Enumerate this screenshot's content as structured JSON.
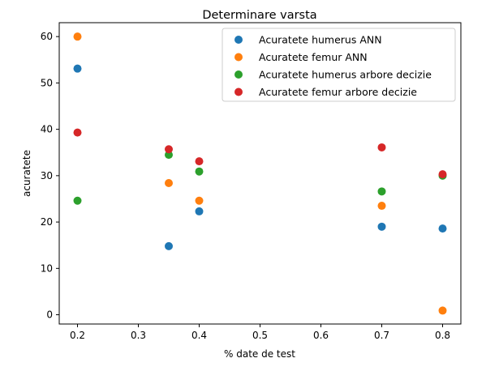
{
  "chart_data": {
    "type": "scatter",
    "title": "Determinare varsta",
    "xlabel": "% date de test",
    "ylabel": "acuratete",
    "xlim": [
      0.17,
      0.83
    ],
    "ylim": [
      -2,
      63
    ],
    "xticks": [
      0.2,
      0.3,
      0.4,
      0.5,
      0.6,
      0.7,
      0.8
    ],
    "xtick_labels": [
      "0.2",
      "0.3",
      "0.4",
      "0.5",
      "0.6",
      "0.7",
      "0.8"
    ],
    "yticks": [
      0,
      10,
      20,
      30,
      40,
      50,
      60
    ],
    "ytick_labels": [
      "0",
      "10",
      "20",
      "30",
      "40",
      "50",
      "60"
    ],
    "grid": false,
    "legend_position": "top-right",
    "series": [
      {
        "name": "Acuratete humerus ANN",
        "color": "#1f77b4",
        "points": [
          [
            0.2,
            53.1
          ],
          [
            0.35,
            14.8
          ],
          [
            0.4,
            22.3
          ],
          [
            0.7,
            19.0
          ],
          [
            0.8,
            18.6
          ]
        ]
      },
      {
        "name": "Acuratete femur ANN",
        "color": "#ff7f0e",
        "points": [
          [
            0.2,
            60.0
          ],
          [
            0.35,
            28.4
          ],
          [
            0.4,
            24.6
          ],
          [
            0.7,
            23.5
          ],
          [
            0.8,
            0.9
          ]
        ]
      },
      {
        "name": "Acuratete humerus arbore decizie",
        "color": "#2ca02c",
        "points": [
          [
            0.2,
            24.6
          ],
          [
            0.35,
            34.5
          ],
          [
            0.4,
            30.9
          ],
          [
            0.7,
            26.6
          ],
          [
            0.8,
            30.0
          ]
        ]
      },
      {
        "name": "Acuratete femur arbore decizie",
        "color": "#d62728",
        "points": [
          [
            0.2,
            39.3
          ],
          [
            0.35,
            35.7
          ],
          [
            0.4,
            33.1
          ],
          [
            0.7,
            36.1
          ],
          [
            0.8,
            30.3
          ]
        ]
      }
    ]
  }
}
